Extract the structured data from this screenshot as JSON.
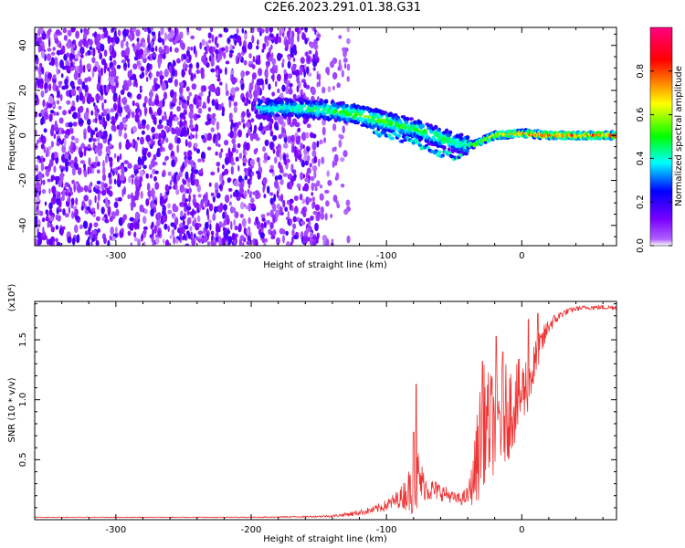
{
  "title": "C2E6.2023.291.01.38.G31",
  "chart_data": [
    {
      "type": "heatmap",
      "xlabel": "Height of straight line (km)",
      "ylabel": "Frequency (Hz)",
      "xlim": [
        -360,
        70
      ],
      "ylim": [
        -49,
        48
      ],
      "x_ticks": [
        -300,
        -200,
        -100,
        0
      ],
      "y_ticks": [
        -40,
        -20,
        0,
        20,
        40
      ],
      "colorbar": {
        "label": "Normalized spectral amplitude",
        "range": [
          0.0,
          1.0
        ],
        "ticks": [
          "0.0",
          "0.2",
          "0.4",
          "0.6",
          "0.8"
        ],
        "tick_values": [
          0.0,
          0.2,
          0.4,
          0.6,
          0.8
        ],
        "colors": [
          "#ffffff",
          "#7b00ff",
          "#0000ff",
          "#00ffff",
          "#00ff00",
          "#ffff00",
          "#ff0000",
          "#ff0080"
        ]
      },
      "ridge": {
        "x": [
          -190,
          -160,
          -140,
          -120,
          -100,
          -80,
          -60,
          -45,
          -35,
          -20,
          0,
          20,
          70
        ],
        "y": [
          12,
          12,
          11,
          9,
          6,
          3,
          -1,
          -4,
          -4,
          0,
          1,
          0,
          0
        ],
        "amplitude": [
          0.4,
          0.45,
          0.5,
          0.55,
          0.55,
          0.5,
          0.5,
          0.45,
          0.55,
          0.7,
          0.8,
          0.85,
          0.85
        ]
      }
    },
    {
      "type": "line",
      "xlabel": "Height of straight line (km)",
      "ylabel": "SNR (10 * v/v)",
      "y_multiplier": "(x10⁴)",
      "xlim": [
        -360,
        70
      ],
      "ylim": [
        0,
        1.82
      ],
      "x_ticks": [
        -300,
        -200,
        -100,
        0
      ],
      "y_ticks": [
        0.5,
        1.0,
        1.5
      ],
      "y_tick_labels": [
        "0.5",
        "1.0",
        "1.5"
      ],
      "series": [
        {
          "color": "#ee3333",
          "x": [
            -360,
            -300,
            -250,
            -200,
            -160,
            -140,
            -125,
            -110,
            -100,
            -90,
            -82,
            -78,
            -75,
            -72,
            -68,
            -62,
            -55,
            -50,
            -45,
            -40,
            -36,
            -32,
            -28,
            -24,
            -20,
            -15,
            -10,
            -5,
            0,
            5,
            10,
            15,
            20,
            30,
            40,
            50,
            70
          ],
          "y": [
            0.02,
            0.02,
            0.02,
            0.02,
            0.025,
            0.03,
            0.05,
            0.08,
            0.12,
            0.18,
            0.26,
            0.34,
            0.32,
            0.28,
            0.25,
            0.24,
            0.21,
            0.18,
            0.17,
            0.2,
            0.32,
            0.6,
            0.8,
            0.78,
            0.82,
            0.85,
            0.9,
            0.98,
            1.05,
            1.15,
            1.3,
            1.48,
            1.62,
            1.72,
            1.76,
            1.77,
            1.77
          ],
          "noise": [
            0.003,
            0.003,
            0.003,
            0.004,
            0.006,
            0.01,
            0.02,
            0.03,
            0.05,
            0.08,
            0.2,
            0.35,
            0.2,
            0.12,
            0.1,
            0.08,
            0.06,
            0.05,
            0.05,
            0.08,
            0.2,
            0.45,
            0.5,
            0.45,
            0.45,
            0.45,
            0.4,
            0.35,
            0.3,
            0.25,
            0.2,
            0.12,
            0.07,
            0.03,
            0.02,
            0.02,
            0.02
          ],
          "spikes": [
            {
              "x": -78,
              "y": 1.13
            },
            {
              "x": -80,
              "y": 0.73
            },
            {
              "x": -29,
              "y": 1.32
            },
            {
              "x": -19,
              "y": 1.53
            },
            {
              "x": -14,
              "y": 1.4
            },
            {
              "x": 5,
              "y": 1.67
            },
            {
              "x": 12,
              "y": 1.72
            }
          ]
        }
      ]
    }
  ]
}
